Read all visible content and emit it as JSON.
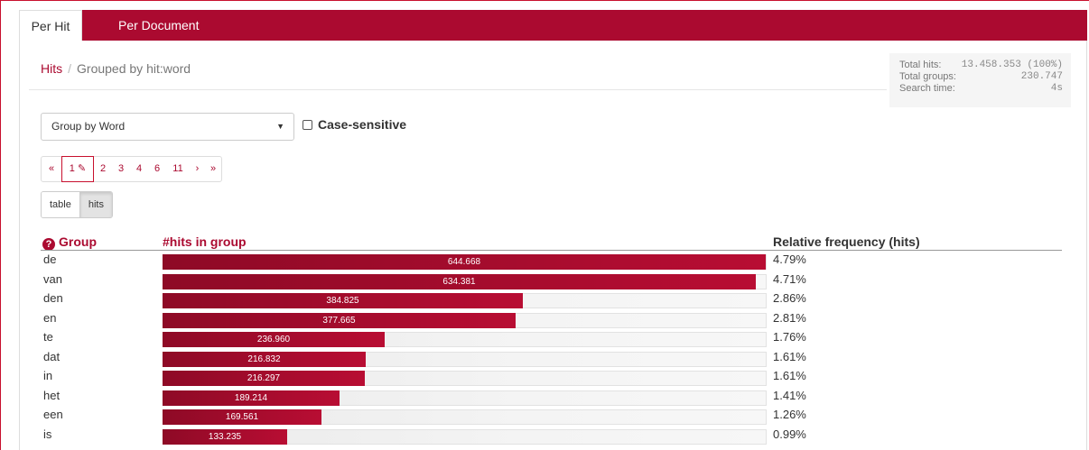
{
  "tabs": [
    {
      "label": "Per Hit",
      "active": true
    },
    {
      "label": "Per Document",
      "active": false
    }
  ],
  "breadcrumb": {
    "link": "Hits",
    "current": "Grouped by hit:word"
  },
  "stats": {
    "total_hits_label": "Total hits:",
    "total_hits_value": "13.458.353 (100%)",
    "total_groups_label": "Total groups:",
    "total_groups_value": "230.747",
    "search_time_label": "Search time:",
    "search_time_value": "4s"
  },
  "group_by": {
    "value": "Group by Word"
  },
  "case_sensitive": {
    "label": "Case-sensitive",
    "checked": false
  },
  "pagination": {
    "first": "«",
    "pages": [
      "1",
      "2",
      "3",
      "4",
      "6",
      "11"
    ],
    "current": "1",
    "next": "›",
    "last": "»"
  },
  "view_toggle": {
    "table": "table",
    "hits": "hits",
    "active": "hits"
  },
  "results": {
    "col_group": "Group",
    "col_hits": "#hits in group",
    "col_rel": "Relative frequency (hits)",
    "max_hits": 644668,
    "rows": [
      {
        "word": "de",
        "hits": 644668,
        "hits_label": "644.668",
        "rel": "4.79%"
      },
      {
        "word": "van",
        "hits": 634381,
        "hits_label": "634.381",
        "rel": "4.71%"
      },
      {
        "word": "den",
        "hits": 384825,
        "hits_label": "384.825",
        "rel": "2.86%"
      },
      {
        "word": "en",
        "hits": 377665,
        "hits_label": "377.665",
        "rel": "2.81%"
      },
      {
        "word": "te",
        "hits": 236960,
        "hits_label": "236.960",
        "rel": "1.76%"
      },
      {
        "word": "dat",
        "hits": 216832,
        "hits_label": "216.832",
        "rel": "1.61%"
      },
      {
        "word": "in",
        "hits": 216297,
        "hits_label": "216.297",
        "rel": "1.61%"
      },
      {
        "word": "het",
        "hits": 189214,
        "hits_label": "189.214",
        "rel": "1.41%"
      },
      {
        "word": "een",
        "hits": 169561,
        "hits_label": "169.561",
        "rel": "1.26%"
      },
      {
        "word": "is",
        "hits": 133235,
        "hits_label": "133.235",
        "rel": "0.99%"
      }
    ]
  },
  "colors": {
    "accent": "#ab0a30",
    "bar_dark": "#8e0a26"
  }
}
